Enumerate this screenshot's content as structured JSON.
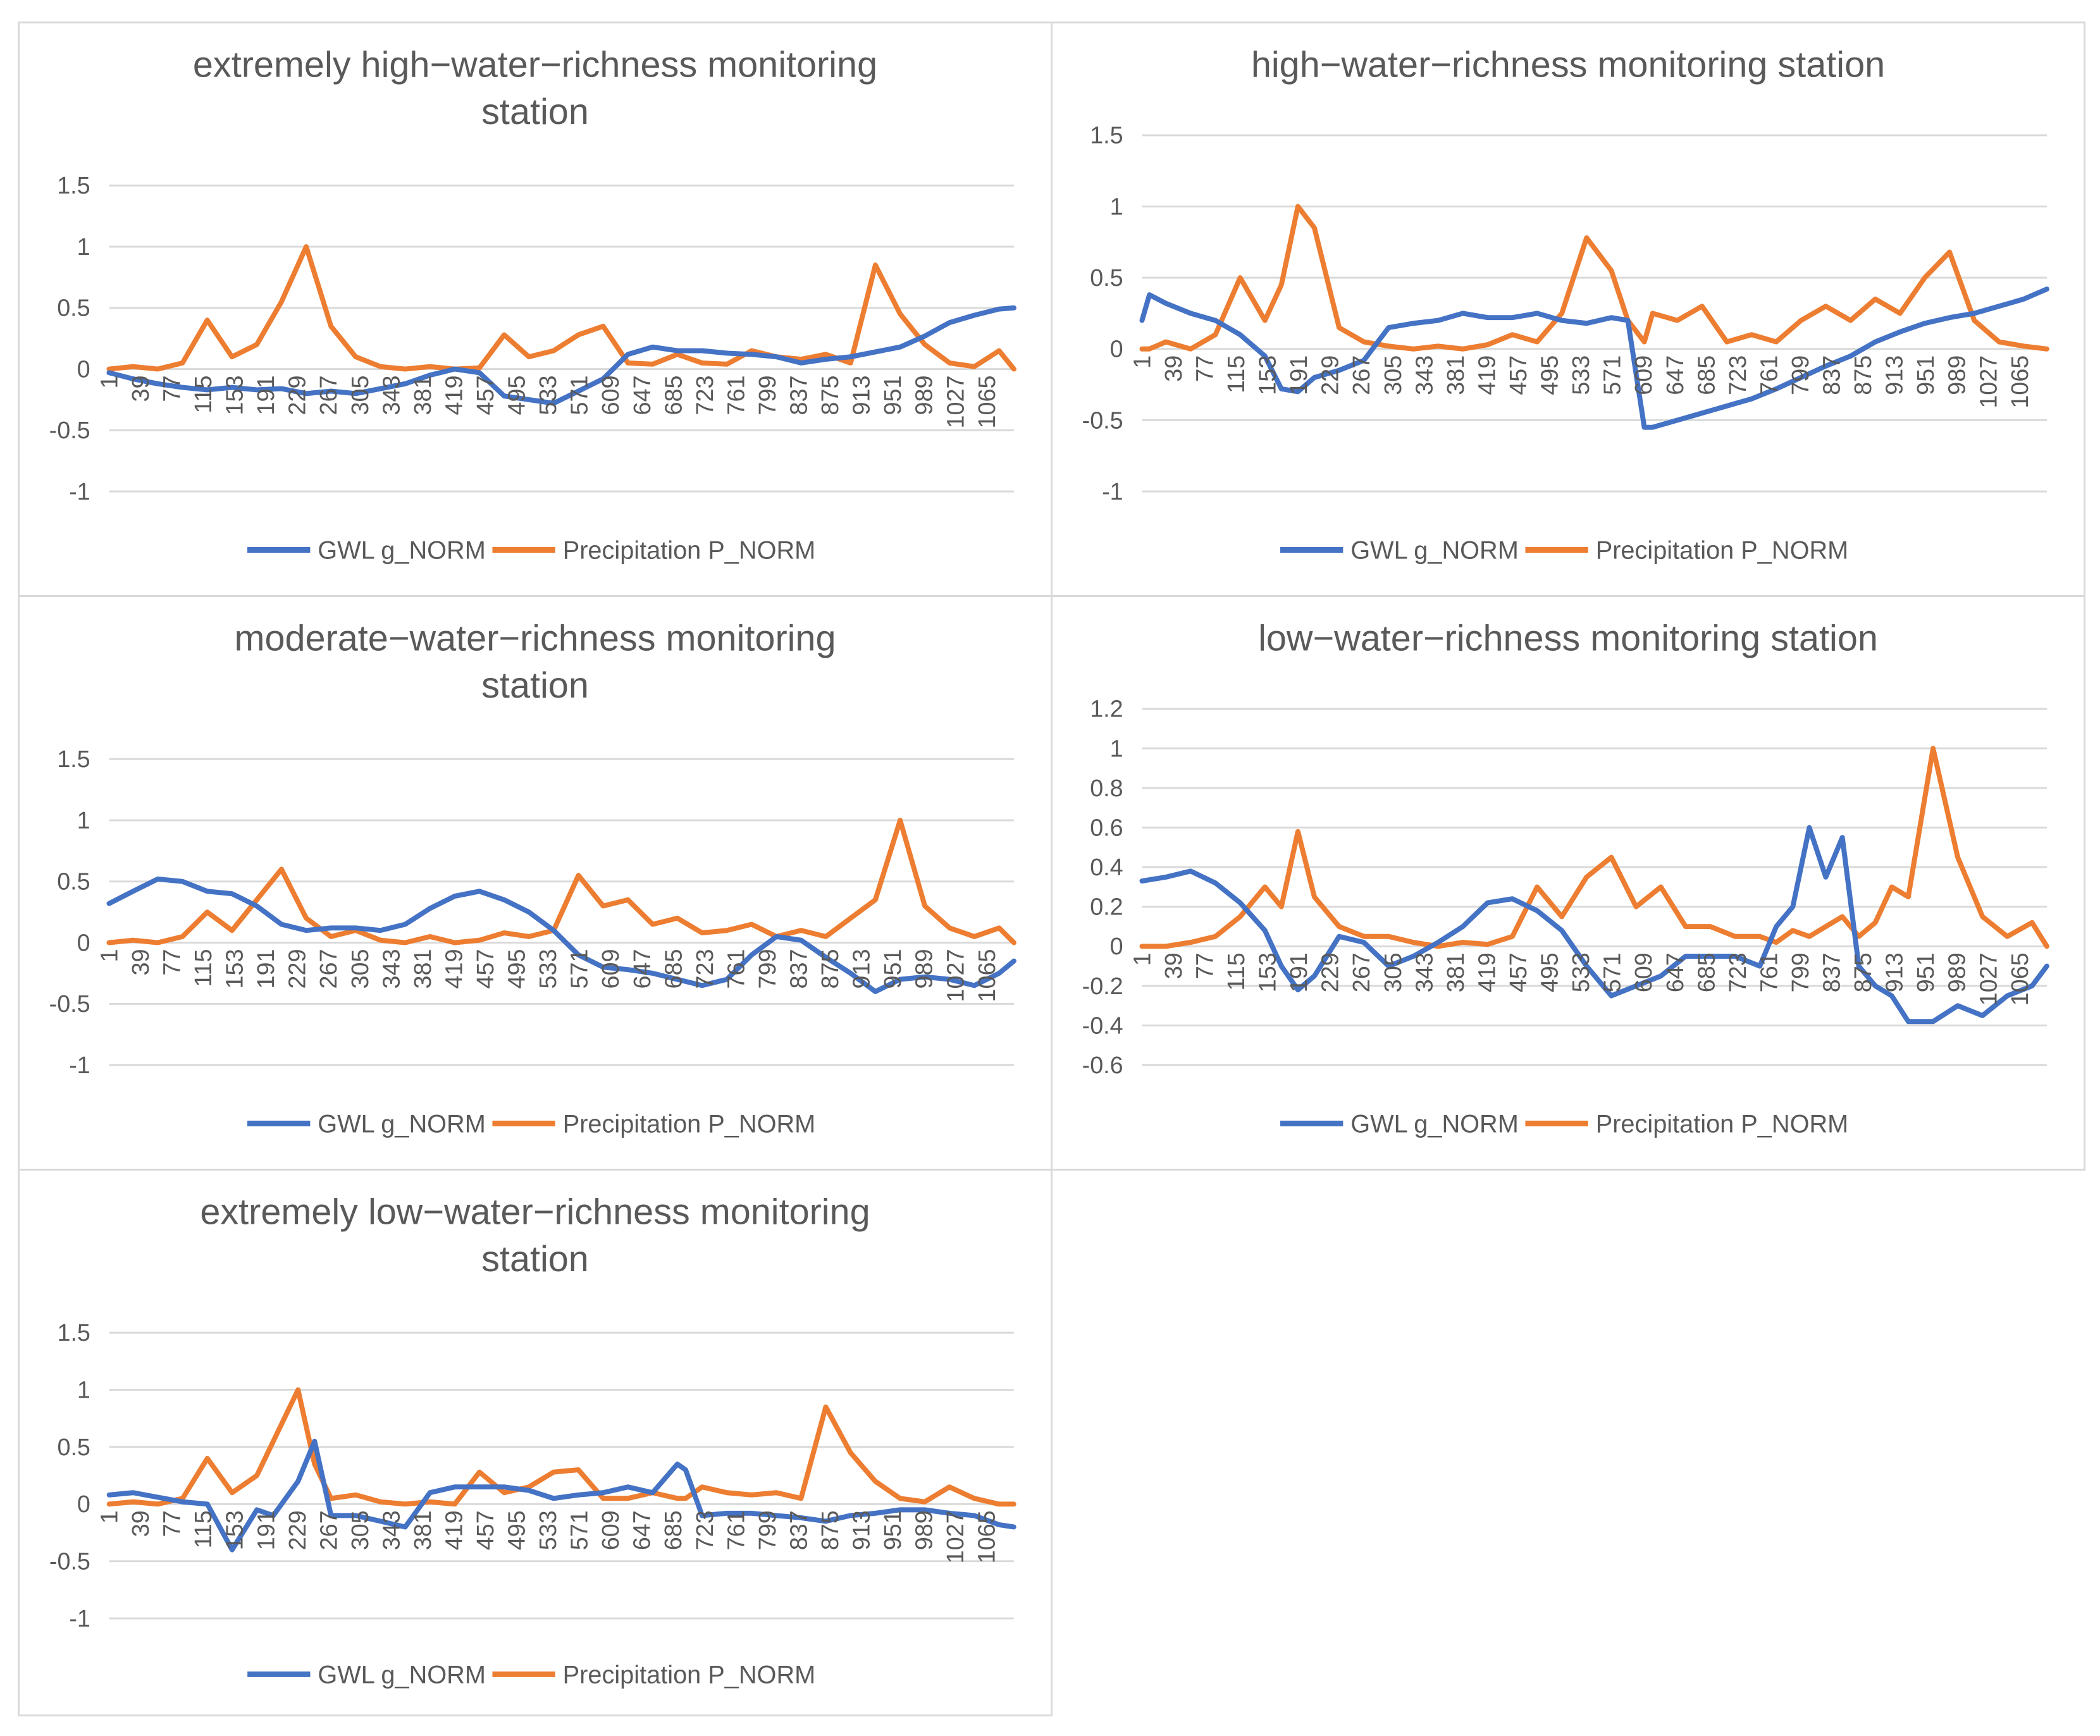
{
  "colors": {
    "gwl": "#4472C4",
    "precip": "#ED7D31",
    "grid": "#D9D9D9",
    "text": "#595959"
  },
  "chart_data": [
    {
      "type": "line",
      "title": [
        "extremely high−water−richness monitoring",
        "station"
      ],
      "x_ticks": [
        "1",
        "39",
        "77",
        "115",
        "153",
        "191",
        "229",
        "267",
        "305",
        "343",
        "381",
        "419",
        "457",
        "495",
        "533",
        "571",
        "609",
        "647",
        "685",
        "723",
        "761",
        "799",
        "837",
        "875",
        "913",
        "951",
        "989",
        "1027",
        "1065"
      ],
      "ylim": [
        -1,
        1.5
      ],
      "y_ticks": [
        "-1",
        "-0.5",
        "0",
        "0.5",
        "1",
        "1.5"
      ],
      "x": [
        1,
        30,
        60,
        90,
        120,
        150,
        180,
        210,
        240,
        270,
        300,
        330,
        360,
        390,
        420,
        450,
        480,
        510,
        540,
        570,
        600,
        630,
        660,
        690,
        720,
        750,
        780,
        810,
        840,
        870,
        900,
        930,
        960,
        990,
        1020,
        1050,
        1080,
        1098
      ],
      "series": [
        {
          "name": "GWL g_NORM",
          "values": [
            -0.03,
            -0.08,
            -0.12,
            -0.15,
            -0.17,
            -0.15,
            -0.17,
            -0.16,
            -0.2,
            -0.18,
            -0.2,
            -0.16,
            -0.12,
            -0.05,
            0,
            -0.03,
            -0.22,
            -0.25,
            -0.28,
            -0.18,
            -0.08,
            0.12,
            0.18,
            0.15,
            0.15,
            0.13,
            0.12,
            0.1,
            0.05,
            0.08,
            0.1,
            0.14,
            0.18,
            0.27,
            0.38,
            0.44,
            0.49,
            0.5
          ]
        },
        {
          "name": "Precipitation P_NORM",
          "values": [
            0,
            0.02,
            0,
            0.05,
            0.4,
            0.1,
            0.2,
            0.55,
            1.0,
            0.35,
            0.1,
            0.02,
            0,
            0.02,
            0,
            0.01,
            0.28,
            0.1,
            0.15,
            0.28,
            0.35,
            0.05,
            0.04,
            0.12,
            0.05,
            0.04,
            0.15,
            0.1,
            0.08,
            0.12,
            0.05,
            0.85,
            0.45,
            0.2,
            0.05,
            0.02,
            0.15,
            0
          ]
        }
      ]
    },
    {
      "type": "line",
      "title": [
        "high−water−richness monitoring station"
      ],
      "x_ticks": [
        "1",
        "39",
        "77",
        "115",
        "153",
        "191",
        "229",
        "267",
        "305",
        "343",
        "381",
        "419",
        "457",
        "495",
        "533",
        "571",
        "609",
        "647",
        "685",
        "723",
        "761",
        "799",
        "837",
        "875",
        "913",
        "951",
        "989",
        "1027",
        "1065"
      ],
      "ylim": [
        -1,
        1.5
      ],
      "y_ticks": [
        "-1",
        "-0.5",
        "0",
        "0.5",
        "1",
        "1.5"
      ],
      "x": [
        1,
        10,
        30,
        60,
        90,
        120,
        150,
        170,
        190,
        210,
        240,
        270,
        300,
        330,
        360,
        390,
        420,
        450,
        480,
        510,
        540,
        570,
        590,
        610,
        620,
        650,
        680,
        710,
        740,
        770,
        800,
        830,
        860,
        890,
        920,
        950,
        980,
        1010,
        1040,
        1070,
        1098
      ],
      "series": [
        {
          "name": "GWL g_NORM",
          "values": [
            0.2,
            0.38,
            0.32,
            0.25,
            0.2,
            0.1,
            -0.05,
            -0.28,
            -0.3,
            -0.2,
            -0.15,
            -0.08,
            0.15,
            0.18,
            0.2,
            0.25,
            0.22,
            0.22,
            0.25,
            0.2,
            0.18,
            0.22,
            0.2,
            -0.55,
            -0.55,
            -0.5,
            -0.45,
            -0.4,
            -0.35,
            -0.28,
            -0.2,
            -0.12,
            -0.05,
            0.05,
            0.12,
            0.18,
            0.22,
            0.25,
            0.3,
            0.35,
            0.42
          ]
        },
        {
          "name": "Precipitation P_NORM",
          "values": [
            0,
            0,
            0.05,
            0,
            0.1,
            0.5,
            0.2,
            0.45,
            1.0,
            0.85,
            0.15,
            0.05,
            0.02,
            0,
            0.02,
            0,
            0.03,
            0.1,
            0.05,
            0.25,
            0.78,
            0.55,
            0.2,
            0.05,
            0.25,
            0.2,
            0.3,
            0.05,
            0.1,
            0.05,
            0.2,
            0.3,
            0.2,
            0.35,
            0.25,
            0.5,
            0.68,
            0.2,
            0.05,
            0.02,
            0
          ]
        }
      ]
    },
    {
      "type": "line",
      "title": [
        "moderate−water−richness monitoring",
        "station"
      ],
      "x_ticks": [
        "1",
        "39",
        "77",
        "115",
        "153",
        "191",
        "229",
        "267",
        "305",
        "343",
        "381",
        "419",
        "457",
        "495",
        "533",
        "571",
        "609",
        "647",
        "685",
        "723",
        "761",
        "799",
        "837",
        "875",
        "913",
        "951",
        "989",
        "1027",
        "1065"
      ],
      "ylim": [
        -1,
        1.5
      ],
      "y_ticks": [
        "-1",
        "-0.5",
        "0",
        "0.5",
        "1",
        "1.5"
      ],
      "x": [
        1,
        30,
        60,
        90,
        120,
        150,
        180,
        210,
        240,
        270,
        300,
        330,
        360,
        390,
        420,
        450,
        480,
        510,
        540,
        570,
        600,
        630,
        660,
        690,
        720,
        750,
        780,
        810,
        840,
        870,
        900,
        930,
        960,
        990,
        1020,
        1050,
        1080,
        1098
      ],
      "series": [
        {
          "name": "GWL g_NORM",
          "values": [
            0.32,
            0.42,
            0.52,
            0.5,
            0.42,
            0.4,
            0.3,
            0.15,
            0.1,
            0.12,
            0.12,
            0.1,
            0.15,
            0.28,
            0.38,
            0.42,
            0.35,
            0.25,
            0.1,
            -0.1,
            -0.2,
            -0.22,
            -0.25,
            -0.3,
            -0.35,
            -0.3,
            -0.1,
            0.05,
            0.02,
            -0.12,
            -0.25,
            -0.4,
            -0.3,
            -0.28,
            -0.3,
            -0.35,
            -0.25,
            -0.15
          ]
        },
        {
          "name": "Precipitation P_NORM",
          "values": [
            0,
            0.02,
            0,
            0.05,
            0.25,
            0.1,
            0.35,
            0.6,
            0.2,
            0.05,
            0.1,
            0.02,
            0,
            0.05,
            0,
            0.02,
            0.08,
            0.05,
            0.1,
            0.55,
            0.3,
            0.35,
            0.15,
            0.2,
            0.08,
            0.1,
            0.15,
            0.05,
            0.1,
            0.05,
            0.2,
            0.35,
            1.0,
            0.3,
            0.12,
            0.05,
            0.12,
            0
          ]
        }
      ]
    },
    {
      "type": "line",
      "title": [
        "low−water−richness monitoring station"
      ],
      "x_ticks": [
        "1",
        "39",
        "77",
        "115",
        "153",
        "191",
        "229",
        "267",
        "305",
        "343",
        "381",
        "419",
        "457",
        "495",
        "533",
        "571",
        "609",
        "647",
        "685",
        "723",
        "761",
        "799",
        "837",
        "875",
        "913",
        "951",
        "989",
        "1027",
        "1065"
      ],
      "ylim": [
        -0.6,
        1.2
      ],
      "y_ticks": [
        "-0.6",
        "-0.4",
        "-0.2",
        "0",
        "0.2",
        "0.4",
        "0.6",
        "0.8",
        "1",
        "1.2"
      ],
      "x": [
        1,
        30,
        60,
        90,
        120,
        150,
        170,
        190,
        210,
        240,
        270,
        300,
        330,
        360,
        390,
        420,
        450,
        480,
        510,
        540,
        570,
        600,
        630,
        660,
        690,
        720,
        750,
        770,
        790,
        810,
        830,
        850,
        870,
        890,
        910,
        930,
        960,
        990,
        1020,
        1050,
        1080,
        1098
      ],
      "series": [
        {
          "name": "GWL g_NORM",
          "values": [
            0.33,
            0.35,
            0.38,
            0.32,
            0.22,
            0.08,
            -0.1,
            -0.22,
            -0.15,
            0.05,
            0.02,
            -0.1,
            -0.05,
            0.02,
            0.1,
            0.22,
            0.24,
            0.18,
            0.08,
            -0.1,
            -0.25,
            -0.2,
            -0.15,
            -0.05,
            -0.05,
            -0.05,
            -0.1,
            0.1,
            0.2,
            0.6,
            0.35,
            0.55,
            -0.1,
            -0.2,
            -0.25,
            -0.38,
            -0.38,
            -0.3,
            -0.35,
            -0.25,
            -0.2,
            -0.1
          ]
        },
        {
          "name": "Precipitation P_NORM",
          "values": [
            0,
            0,
            0.02,
            0.05,
            0.15,
            0.3,
            0.2,
            0.58,
            0.25,
            0.1,
            0.05,
            0.05,
            0.02,
            0,
            0.02,
            0.01,
            0.05,
            0.3,
            0.15,
            0.35,
            0.45,
            0.2,
            0.3,
            0.1,
            0.1,
            0.05,
            0.05,
            0.02,
            0.08,
            0.05,
            0.1,
            0.15,
            0.05,
            0.12,
            0.3,
            0.25,
            1.0,
            0.45,
            0.15,
            0.05,
            0.12,
            0
          ]
        }
      ]
    },
    {
      "type": "line",
      "title": [
        "extremely low−water−richness monitoring",
        "station"
      ],
      "x_ticks": [
        "1",
        "39",
        "77",
        "115",
        "153",
        "191",
        "229",
        "267",
        "305",
        "343",
        "381",
        "419",
        "457",
        "495",
        "533",
        "571",
        "609",
        "647",
        "685",
        "723",
        "761",
        "799",
        "837",
        "875",
        "913",
        "951",
        "989",
        "1027",
        "1065"
      ],
      "ylim": [
        -1,
        1.5
      ],
      "y_ticks": [
        "-1",
        "-0.5",
        "0",
        "0.5",
        "1",
        "1.5"
      ],
      "x": [
        1,
        30,
        60,
        90,
        120,
        150,
        180,
        200,
        230,
        250,
        270,
        300,
        330,
        360,
        390,
        420,
        450,
        480,
        510,
        540,
        570,
        600,
        630,
        660,
        690,
        700,
        720,
        750,
        780,
        810,
        840,
        870,
        900,
        930,
        960,
        990,
        1020,
        1050,
        1080,
        1098
      ],
      "series": [
        {
          "name": "GWL g_NORM",
          "values": [
            0.08,
            0.1,
            0.06,
            0.02,
            0,
            -0.4,
            -0.05,
            -0.1,
            0.2,
            0.55,
            -0.1,
            -0.1,
            -0.15,
            -0.2,
            0.1,
            0.15,
            0.15,
            0.15,
            0.12,
            0.05,
            0.08,
            0.1,
            0.15,
            0.1,
            0.35,
            0.3,
            -0.1,
            -0.08,
            -0.08,
            -0.1,
            -0.12,
            -0.15,
            -0.1,
            -0.08,
            -0.05,
            -0.05,
            -0.08,
            -0.1,
            -0.18,
            -0.2
          ]
        },
        {
          "name": "Precipitation P_NORM",
          "values": [
            0,
            0.02,
            0,
            0.05,
            0.4,
            0.1,
            0.25,
            0.55,
            1.0,
            0.35,
            0.05,
            0.08,
            0.02,
            0,
            0.02,
            0,
            0.28,
            0.1,
            0.15,
            0.28,
            0.3,
            0.05,
            0.05,
            0.1,
            0.05,
            0.05,
            0.15,
            0.1,
            0.08,
            0.1,
            0.05,
            0.85,
            0.45,
            0.2,
            0.05,
            0.02,
            0.15,
            0.05,
            0,
            0
          ]
        }
      ]
    }
  ]
}
